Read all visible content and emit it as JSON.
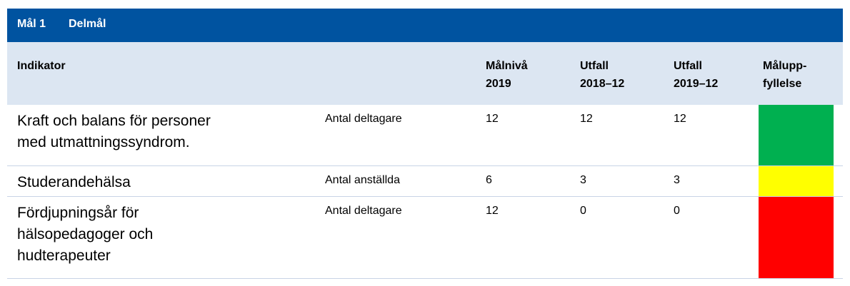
{
  "header": {
    "goal": "Mål 1",
    "subgoal": "Delmål"
  },
  "table": {
    "columns": [
      [
        "Indikator"
      ],
      [
        ""
      ],
      [
        "Målnivå",
        "2019"
      ],
      [
        "Utfall",
        "2018–12"
      ],
      [
        "Utfall",
        "2019–12"
      ],
      [
        "Målupp-",
        "fyllelse"
      ]
    ],
    "rows": [
      {
        "indicator": [
          "Kraft och balans för personer",
          "med utmattningssyndrom."
        ],
        "unit": "Antal deltagare",
        "target": 12,
        "result_2018": 12,
        "result_2019": 12,
        "status_color": "#00b050"
      },
      {
        "indicator": [
          "Studerandehälsa"
        ],
        "unit": "Antal anställda",
        "target": 6,
        "result_2018": 3,
        "result_2019": 3,
        "status_color": "#ffff00"
      },
      {
        "indicator": [
          "Fördjupningsår för",
          "hälsopedagoger och",
          "hudterapeuter"
        ],
        "unit": "Antal deltagare",
        "target": 12,
        "result_2018": 0,
        "result_2019": 0,
        "status_color": "#ff0000"
      }
    ]
  }
}
